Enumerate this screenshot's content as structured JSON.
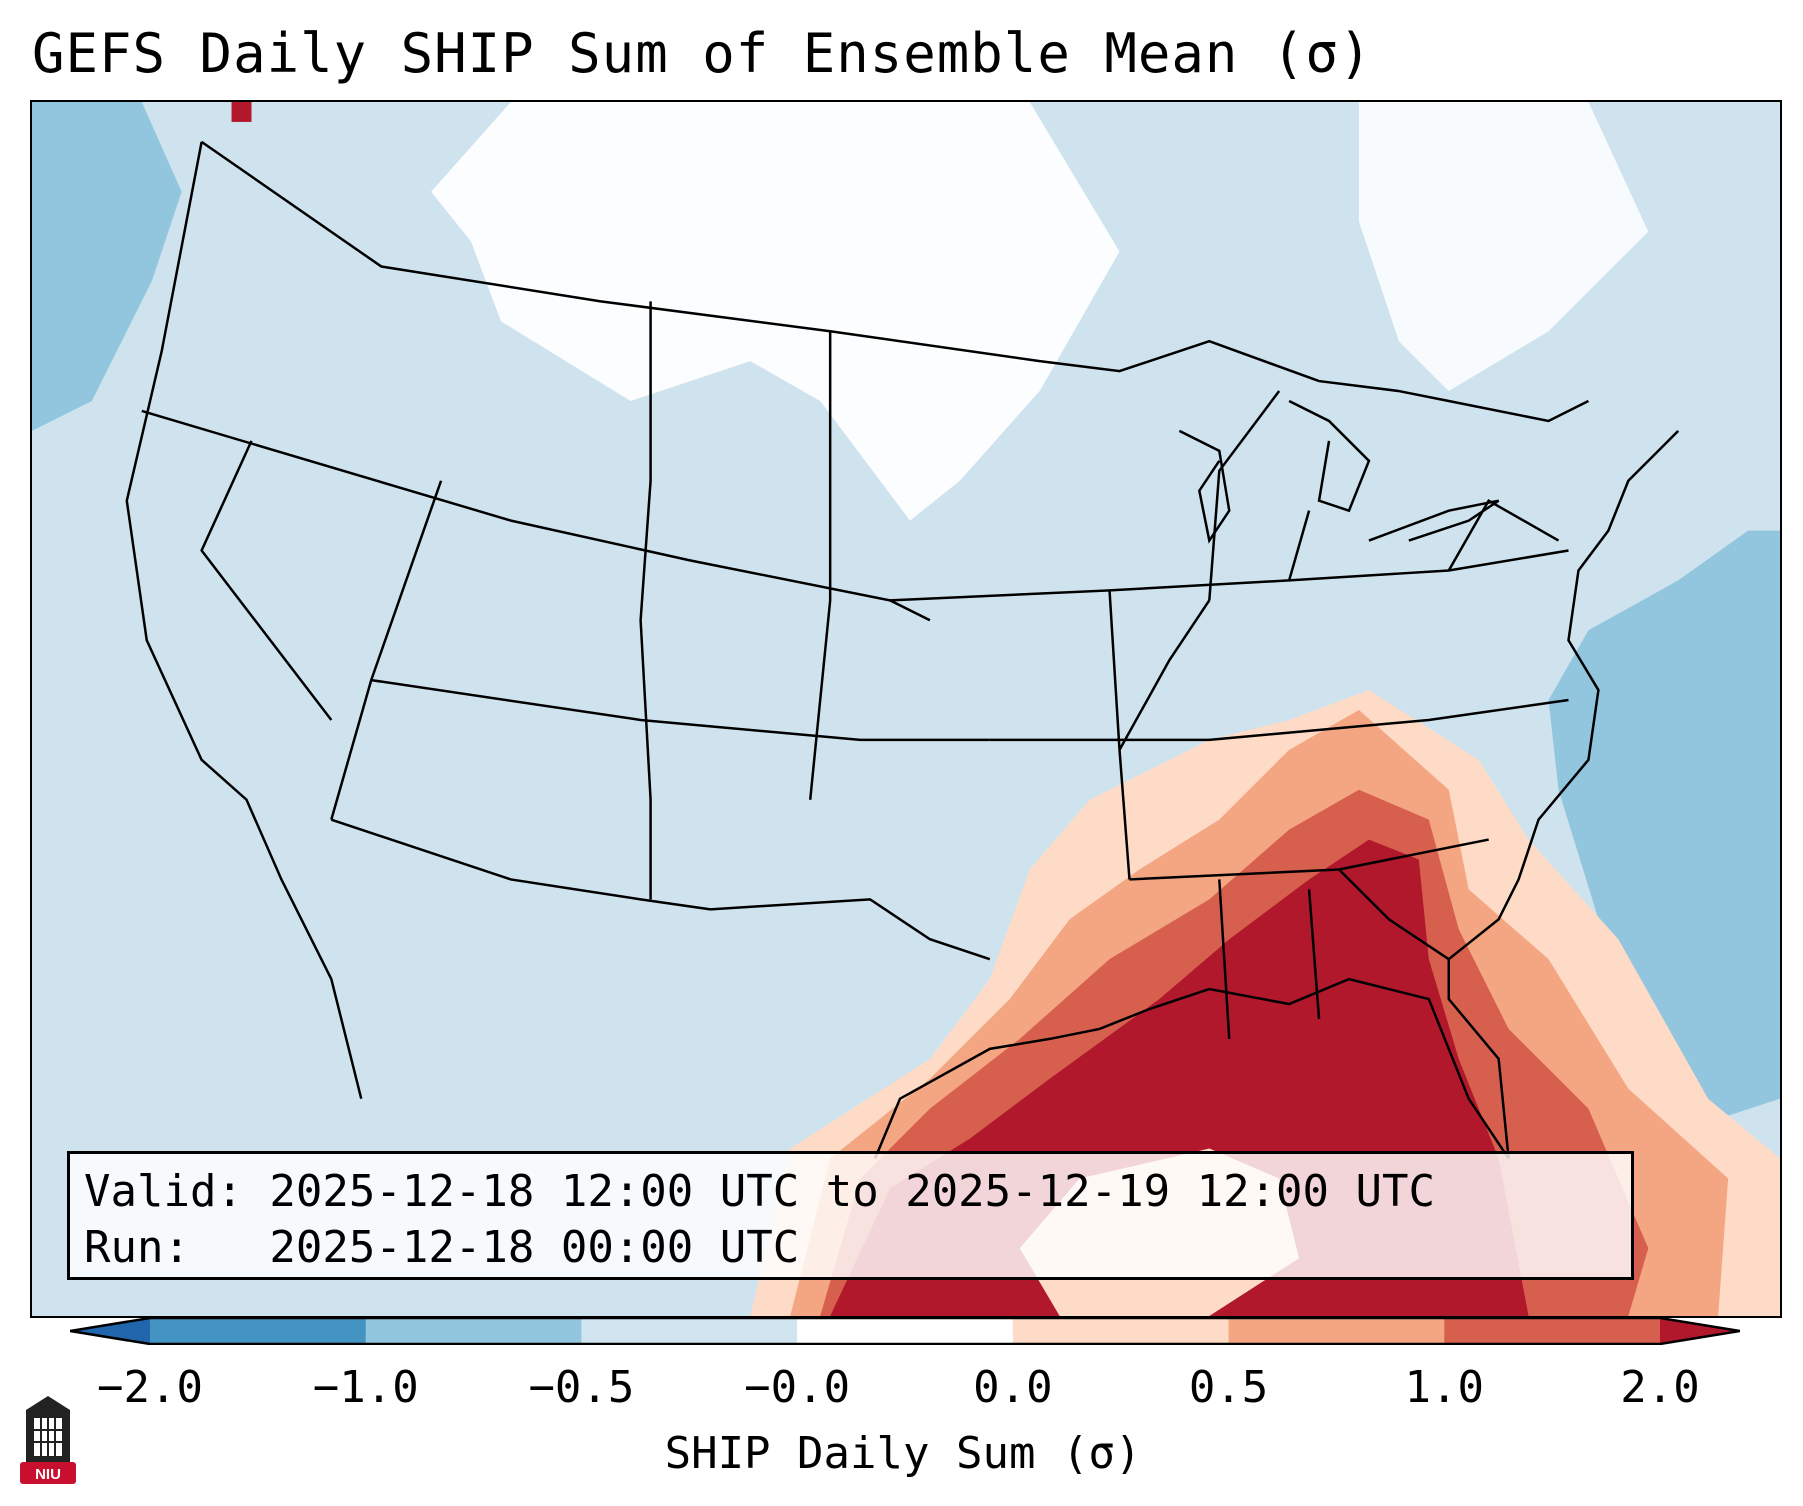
{
  "title": "GEFS Daily SHIP Sum of Ensemble Mean (σ)",
  "info_box": {
    "valid_line": "Valid: 2025-12-18 12:00 UTC to 2025-12-19 12:00 UTC",
    "run_line": "Run:   2025-12-18 00:00 UTC"
  },
  "colorbar": {
    "label": "SHIP Daily Sum (σ)",
    "ticks": [
      "−2.0",
      "−1.0",
      "−0.5",
      "−0.0",
      "0.0",
      "0.5",
      "1.0",
      "2.0"
    ],
    "bins": [
      {
        "range": "< -2.0",
        "color": "#2166ac"
      },
      {
        "range": "-2.0 to -1.0",
        "color": "#4393c3"
      },
      {
        "range": "-1.0 to -0.5",
        "color": "#92c5de"
      },
      {
        "range": "-0.5 to -0.0",
        "color": "#d1e5f0"
      },
      {
        "range": "-0.0 to 0.0",
        "color": "#ffffff"
      },
      {
        "range": "0.0 to 0.5",
        "color": "#fddbc7"
      },
      {
        "range": "0.5 to 1.0",
        "color": "#f4a582"
      },
      {
        "range": "1.0 to 2.0",
        "color": "#d6604d"
      },
      {
        "range": "> 2.0",
        "color": "#b2182b"
      }
    ]
  },
  "logo": {
    "text": "NIU",
    "color": "#c8102e"
  }
}
